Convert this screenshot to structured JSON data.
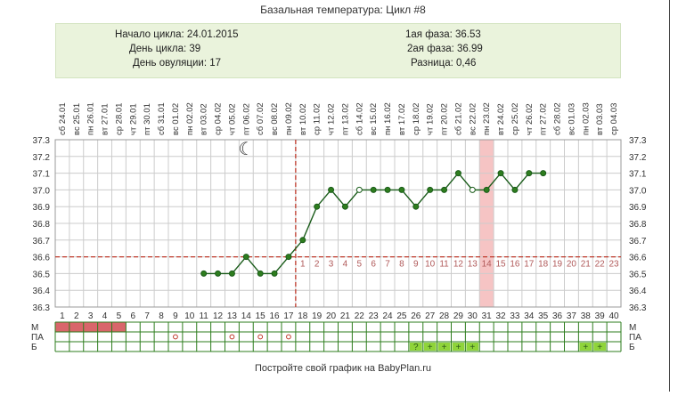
{
  "title": "Базальная температура: Цикл #8",
  "info": {
    "cycle_start": "Начало цикла: 24.01.2015",
    "cycle_day": "День цикла: 39",
    "ovulation_day": "День овуляции: 17",
    "phase1": "1ая фаза: 36.53",
    "phase2": "2ая фаза: 36.99",
    "difference": "Разница: 0,46"
  },
  "footer": "Постройте свой график на BabyPlan.ru",
  "colors": {
    "line": "#1a5c1a",
    "point_fill": "#2e7d1e",
    "coverline": "#c0392b",
    "menstruation": "#d9666b",
    "test_positive": "#8fd43a",
    "highlight_day": "#f6c4c4",
    "grid": "#cccccc"
  },
  "chart_data": {
    "type": "line",
    "title": "Базальная температура: Цикл #8",
    "ylim": [
      36.3,
      37.3
    ],
    "y_ticks": [
      "37.3",
      "37.2",
      "37.1",
      "37.0",
      "36.9",
      "36.8",
      "36.7",
      "36.6",
      "36.5",
      "36.4",
      "36.3"
    ],
    "weekdays": [
      "сб",
      "вс",
      "пн",
      "вт",
      "ср",
      "чт",
      "пт",
      "сб",
      "вс",
      "пн",
      "вт",
      "ср",
      "чт",
      "пт",
      "сб",
      "вс",
      "пн",
      "вт",
      "ср",
      "чт",
      "пт",
      "сб",
      "вс",
      "пн",
      "вт",
      "ср",
      "чт",
      "пт",
      "сб",
      "вс",
      "пн",
      "вт",
      "ср",
      "чт",
      "пт",
      "сб",
      "вс",
      "пн",
      "вт",
      "ср"
    ],
    "dates": [
      "24.01",
      "25.01",
      "26.01",
      "27.01",
      "28.01",
      "29.01",
      "30.01",
      "31.01",
      "01.02",
      "02.02",
      "03.02",
      "04.02",
      "05.02",
      "06.02",
      "07.02",
      "08.02",
      "09.02",
      "10.02",
      "11.02",
      "12.02",
      "13.02",
      "14.02",
      "15.02",
      "16.02",
      "17.02",
      "18.02",
      "19.02",
      "20.02",
      "21.02",
      "22.02",
      "23.02",
      "24.02",
      "25.02",
      "26.02",
      "27.02",
      "28.02",
      "01.03",
      "02.03",
      "03.03",
      "04.03"
    ],
    "cycle_days": [
      "1",
      "2",
      "3",
      "4",
      "5",
      "6",
      "7",
      "8",
      "9",
      "10",
      "11",
      "12",
      "13",
      "14",
      "15",
      "16",
      "17",
      "18",
      "19",
      "20",
      "21",
      "22",
      "23",
      "24",
      "25",
      "26",
      "27",
      "28",
      "29",
      "30",
      "31",
      "32",
      "33",
      "34",
      "35",
      "36",
      "37",
      "38",
      "39",
      "40"
    ],
    "phase2_day_numbers": [
      "1",
      "2",
      "3",
      "4",
      "5",
      "6",
      "7",
      "8",
      "9",
      "10",
      "11",
      "12",
      "13",
      "14",
      "15",
      "16",
      "17",
      "18",
      "19",
      "20",
      "21",
      "22",
      "23"
    ],
    "series": [
      {
        "values": [
          null,
          null,
          null,
          null,
          null,
          null,
          null,
          null,
          null,
          null,
          36.5,
          36.5,
          36.5,
          36.6,
          36.5,
          36.5,
          36.6,
          36.7,
          36.9,
          37.0,
          36.9,
          37.0,
          37.0,
          37.0,
          37.0,
          36.9,
          37.0,
          37.0,
          37.1,
          37.0,
          37.0,
          37.1,
          37.0,
          37.1,
          37.1,
          null,
          null,
          null,
          null,
          null
        ],
        "open_points": [
          22,
          30
        ]
      }
    ],
    "coverline": 36.6,
    "ovulation_day": 17,
    "highlighted_day": 31,
    "moon_day": 14,
    "rows": {
      "labels": [
        "М",
        "ПА",
        "Б"
      ],
      "menstruation_days": [
        1,
        2,
        3,
        4,
        5
      ],
      "intercourse_days": [
        9,
        13,
        15,
        17
      ],
      "test_marks": [
        {
          "day": 26,
          "mark": "?"
        },
        {
          "day": 27,
          "mark": "+"
        },
        {
          "day": 28,
          "mark": "+"
        },
        {
          "day": 29,
          "mark": "+"
        },
        {
          "day": 30,
          "mark": "+"
        },
        {
          "day": 38,
          "mark": "+"
        },
        {
          "day": 39,
          "mark": "+"
        }
      ]
    }
  }
}
